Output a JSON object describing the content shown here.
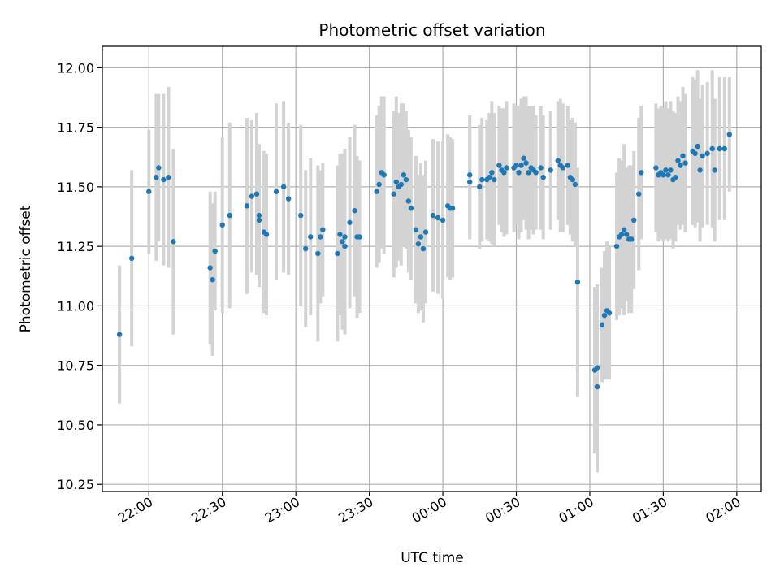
{
  "chart_data": {
    "type": "scatter",
    "title": "Photometric offset variation",
    "xlabel": "UTC time",
    "ylabel": "Photometric offset",
    "xlim": [
      "21:41",
      "02:10"
    ],
    "ylim": [
      10.22,
      12.09
    ],
    "x_ticks": [
      "22:00",
      "22:30",
      "23:00",
      "23:30",
      "00:00",
      "00:30",
      "01:00",
      "01:30",
      "02:00"
    ],
    "y_ticks": [
      "10.25",
      "10.50",
      "10.75",
      "11.00",
      "11.25",
      "11.50",
      "11.75",
      "12.00"
    ],
    "grid": true,
    "colors": {
      "point": "#1f77b4",
      "error_bar": "#d3d3d3",
      "grid": "#b0b0b0"
    },
    "series": [
      {
        "points": [
          {
            "t": "21:48",
            "y": 10.88,
            "e": 0.29
          },
          {
            "t": "21:53",
            "y": 11.2,
            "e": 0.37
          },
          {
            "t": "22:00",
            "y": 11.48,
            "e": 0.26
          },
          {
            "t": "22:03",
            "y": 11.54,
            "e": 0.35
          },
          {
            "t": "22:04",
            "y": 11.58,
            "e": 0.31
          },
          {
            "t": "22:06",
            "y": 11.53,
            "e": 0.36
          },
          {
            "t": "22:08",
            "y": 11.54,
            "e": 0.38
          },
          {
            "t": "22:10",
            "y": 11.27,
            "e": 0.39
          },
          {
            "t": "22:25",
            "y": 11.16,
            "e": 0.32
          },
          {
            "t": "22:26",
            "y": 11.11,
            "e": 0.32
          },
          {
            "t": "22:27",
            "y": 11.23,
            "e": 0.25
          },
          {
            "t": "22:30",
            "y": 11.34,
            "e": 0.37
          },
          {
            "t": "22:33",
            "y": 11.38,
            "e": 0.39
          },
          {
            "t": "22:40",
            "y": 11.42,
            "e": 0.37
          },
          {
            "t": "22:42",
            "y": 11.46,
            "e": 0.32
          },
          {
            "t": "22:44",
            "y": 11.47,
            "e": 0.34
          },
          {
            "t": "22:45",
            "y": 11.38,
            "e": 0.3
          },
          {
            "t": "22:45",
            "y": 11.36,
            "e": 0.28
          },
          {
            "t": "22:47",
            "y": 11.31,
            "e": 0.34
          },
          {
            "t": "22:48",
            "y": 11.3,
            "e": 0.34
          },
          {
            "t": "22:52",
            "y": 11.48,
            "e": 0.37
          },
          {
            "t": "22:55",
            "y": 11.5,
            "e": 0.36
          },
          {
            "t": "22:57",
            "y": 11.45,
            "e": 0.32
          },
          {
            "t": "23:02",
            "y": 11.38,
            "e": 0.38
          },
          {
            "t": "23:04",
            "y": 11.24,
            "e": 0.33
          },
          {
            "t": "23:06",
            "y": 11.29,
            "e": 0.33
          },
          {
            "t": "23:09",
            "y": 11.22,
            "e": 0.37
          },
          {
            "t": "23:10",
            "y": 11.29,
            "e": 0.28
          },
          {
            "t": "23:11",
            "y": 11.32,
            "e": 0.28
          },
          {
            "t": "23:17",
            "y": 11.22,
            "e": 0.37
          },
          {
            "t": "23:18",
            "y": 11.3,
            "e": 0.34
          },
          {
            "t": "23:19",
            "y": 11.27,
            "e": 0.37
          },
          {
            "t": "23:20",
            "y": 11.29,
            "e": 0.37
          },
          {
            "t": "23:20",
            "y": 11.25,
            "e": 0.37
          },
          {
            "t": "23:22",
            "y": 11.35,
            "e": 0.36
          },
          {
            "t": "23:24",
            "y": 11.4,
            "e": 0.36
          },
          {
            "t": "23:25",
            "y": 11.29,
            "e": 0.34
          },
          {
            "t": "23:26",
            "y": 11.29,
            "e": 0.32
          },
          {
            "t": "23:33",
            "y": 11.48,
            "e": 0.32
          },
          {
            "t": "23:34",
            "y": 11.51,
            "e": 0.33
          },
          {
            "t": "23:35",
            "y": 11.56,
            "e": 0.32
          },
          {
            "t": "23:36",
            "y": 11.55,
            "e": 0.33
          },
          {
            "t": "23:40",
            "y": 11.47,
            "e": 0.35
          },
          {
            "t": "23:41",
            "y": 11.52,
            "e": 0.36
          },
          {
            "t": "23:42",
            "y": 11.5,
            "e": 0.31
          },
          {
            "t": "23:43",
            "y": 11.51,
            "e": 0.34
          },
          {
            "t": "23:44",
            "y": 11.55,
            "e": 0.3
          },
          {
            "t": "23:45",
            "y": 11.53,
            "e": 0.29
          },
          {
            "t": "23:46",
            "y": 11.44,
            "e": 0.3
          },
          {
            "t": "23:47",
            "y": 11.41,
            "e": 0.3
          },
          {
            "t": "23:49",
            "y": 11.32,
            "e": 0.31
          },
          {
            "t": "23:50",
            "y": 11.26,
            "e": 0.29
          },
          {
            "t": "23:51",
            "y": 11.29,
            "e": 0.31
          },
          {
            "t": "23:52",
            "y": 11.24,
            "e": 0.31
          },
          {
            "t": "23:53",
            "y": 11.31,
            "e": 0.3
          },
          {
            "t": "23:56",
            "y": 11.38,
            "e": 0.32
          },
          {
            "t": "23:58",
            "y": 11.37,
            "e": 0.32
          },
          {
            "t": "00:00",
            "y": 11.36,
            "e": 0.33
          },
          {
            "t": "00:02",
            "y": 11.42,
            "e": 0.3
          },
          {
            "t": "00:03",
            "y": 11.41,
            "e": 0.3
          },
          {
            "t": "00:04",
            "y": 11.41,
            "e": 0.29
          },
          {
            "t": "00:11",
            "y": 11.55,
            "e": 0.25
          },
          {
            "t": "00:11",
            "y": 11.52,
            "e": 0.24
          },
          {
            "t": "00:15",
            "y": 11.5,
            "e": 0.26
          },
          {
            "t": "00:16",
            "y": 11.53,
            "e": 0.26
          },
          {
            "t": "00:18",
            "y": 11.53,
            "e": 0.25
          },
          {
            "t": "00:19",
            "y": 11.54,
            "e": 0.27
          },
          {
            "t": "00:20",
            "y": 11.56,
            "e": 0.3
          },
          {
            "t": "00:21",
            "y": 11.53,
            "e": 0.28
          },
          {
            "t": "00:23",
            "y": 11.59,
            "e": 0.25
          },
          {
            "t": "00:24",
            "y": 11.57,
            "e": 0.26
          },
          {
            "t": "00:25",
            "y": 11.56,
            "e": 0.27
          },
          {
            "t": "00:26",
            "y": 11.58,
            "e": 0.28
          },
          {
            "t": "00:29",
            "y": 11.58,
            "e": 0.27
          },
          {
            "t": "00:30",
            "y": 11.59,
            "e": 0.25
          },
          {
            "t": "00:31",
            "y": 11.56,
            "e": 0.28
          },
          {
            "t": "00:32",
            "y": 11.59,
            "e": 0.28
          },
          {
            "t": "00:33",
            "y": 11.62,
            "e": 0.26
          },
          {
            "t": "00:34",
            "y": 11.6,
            "e": 0.28
          },
          {
            "t": "00:35",
            "y": 11.56,
            "e": 0.28
          },
          {
            "t": "00:36",
            "y": 11.58,
            "e": 0.26
          },
          {
            "t": "00:37",
            "y": 11.57,
            "e": 0.27
          },
          {
            "t": "00:38",
            "y": 11.56,
            "e": 0.24
          },
          {
            "t": "00:40",
            "y": 11.58,
            "e": 0.26
          },
          {
            "t": "00:41",
            "y": 11.54,
            "e": 0.26
          },
          {
            "t": "00:44",
            "y": 11.57,
            "e": 0.25
          },
          {
            "t": "00:47",
            "y": 11.61,
            "e": 0.25
          },
          {
            "t": "00:48",
            "y": 11.59,
            "e": 0.28
          },
          {
            "t": "00:49",
            "y": 11.58,
            "e": 0.27
          },
          {
            "t": "00:51",
            "y": 11.59,
            "e": 0.25
          },
          {
            "t": "00:52",
            "y": 11.54,
            "e": 0.24
          },
          {
            "t": "00:53",
            "y": 11.53,
            "e": 0.26
          },
          {
            "t": "00:54",
            "y": 11.51,
            "e": 0.26
          },
          {
            "t": "00:55",
            "y": 11.1,
            "e": 0.48
          },
          {
            "t": "01:02",
            "y": 10.73,
            "e": 0.35
          },
          {
            "t": "01:03",
            "y": 10.74,
            "e": 0.35
          },
          {
            "t": "01:03",
            "y": 10.66,
            "e": 0.36
          },
          {
            "t": "01:05",
            "y": 10.92,
            "e": 0.24
          },
          {
            "t": "01:06",
            "y": 10.96,
            "e": 0.27
          },
          {
            "t": "01:07",
            "y": 10.98,
            "e": 0.29
          },
          {
            "t": "01:08",
            "y": 10.97,
            "e": 0.28
          },
          {
            "t": "01:11",
            "y": 11.25,
            "e": 0.31
          },
          {
            "t": "01:12",
            "y": 11.29,
            "e": 0.33
          },
          {
            "t": "01:13",
            "y": 11.3,
            "e": 0.31
          },
          {
            "t": "01:14",
            "y": 11.32,
            "e": 0.36
          },
          {
            "t": "01:15",
            "y": 11.3,
            "e": 0.28
          },
          {
            "t": "01:16",
            "y": 11.28,
            "e": 0.31
          },
          {
            "t": "01:17",
            "y": 11.28,
            "e": 0.31
          },
          {
            "t": "01:18",
            "y": 11.36,
            "e": 0.29
          },
          {
            "t": "01:20",
            "y": 11.47,
            "e": 0.32
          },
          {
            "t": "01:21",
            "y": 11.56,
            "e": 0.28
          },
          {
            "t": "01:27",
            "y": 11.58,
            "e": 0.27
          },
          {
            "t": "01:28",
            "y": 11.55,
            "e": 0.28
          },
          {
            "t": "01:29",
            "y": 11.56,
            "e": 0.28
          },
          {
            "t": "01:30",
            "y": 11.55,
            "e": 0.28
          },
          {
            "t": "01:31",
            "y": 11.57,
            "e": 0.29
          },
          {
            "t": "01:32",
            "y": 11.55,
            "e": 0.28
          },
          {
            "t": "01:33",
            "y": 11.57,
            "e": 0.29
          },
          {
            "t": "01:34",
            "y": 11.53,
            "e": 0.29
          },
          {
            "t": "01:35",
            "y": 11.54,
            "e": 0.27
          },
          {
            "t": "01:36",
            "y": 11.61,
            "e": 0.27
          },
          {
            "t": "01:37",
            "y": 11.59,
            "e": 0.27
          },
          {
            "t": "01:38",
            "y": 11.63,
            "e": 0.29
          },
          {
            "t": "01:39",
            "y": 11.6,
            "e": 0.29
          },
          {
            "t": "01:42",
            "y": 11.65,
            "e": 0.31
          },
          {
            "t": "01:43",
            "y": 11.64,
            "e": 0.31
          },
          {
            "t": "01:44",
            "y": 11.67,
            "e": 0.32
          },
          {
            "t": "01:45",
            "y": 11.57,
            "e": 0.3
          },
          {
            "t": "01:46",
            "y": 11.63,
            "e": 0.3
          },
          {
            "t": "01:48",
            "y": 11.64,
            "e": 0.3
          },
          {
            "t": "01:50",
            "y": 11.66,
            "e": 0.33
          },
          {
            "t": "01:51",
            "y": 11.57,
            "e": 0.3
          },
          {
            "t": "01:53",
            "y": 11.66,
            "e": 0.3
          },
          {
            "t": "01:55",
            "y": 11.66,
            "e": 0.3
          },
          {
            "t": "01:57",
            "y": 11.72,
            "e": 0.24
          }
        ]
      }
    ]
  }
}
